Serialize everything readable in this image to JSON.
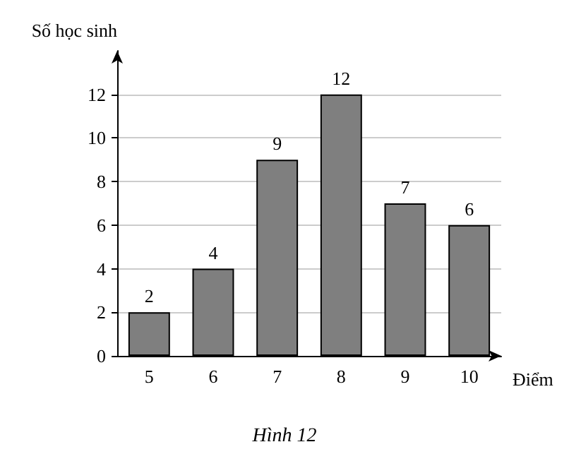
{
  "chart_data": {
    "type": "bar",
    "xlabel": "Điểm",
    "ylabel": "Số học sinh",
    "categories": [
      "5",
      "6",
      "7",
      "8",
      "9",
      "10"
    ],
    "values": [
      2,
      4,
      9,
      12,
      7,
      6
    ],
    "color": "#7f7f7f",
    "ylim": [
      0,
      14
    ],
    "yticks": [
      0,
      2,
      4,
      6,
      8,
      10,
      12
    ],
    "grid": "y",
    "data_labels": true,
    "annotations": [
      "Hình 12"
    ]
  }
}
